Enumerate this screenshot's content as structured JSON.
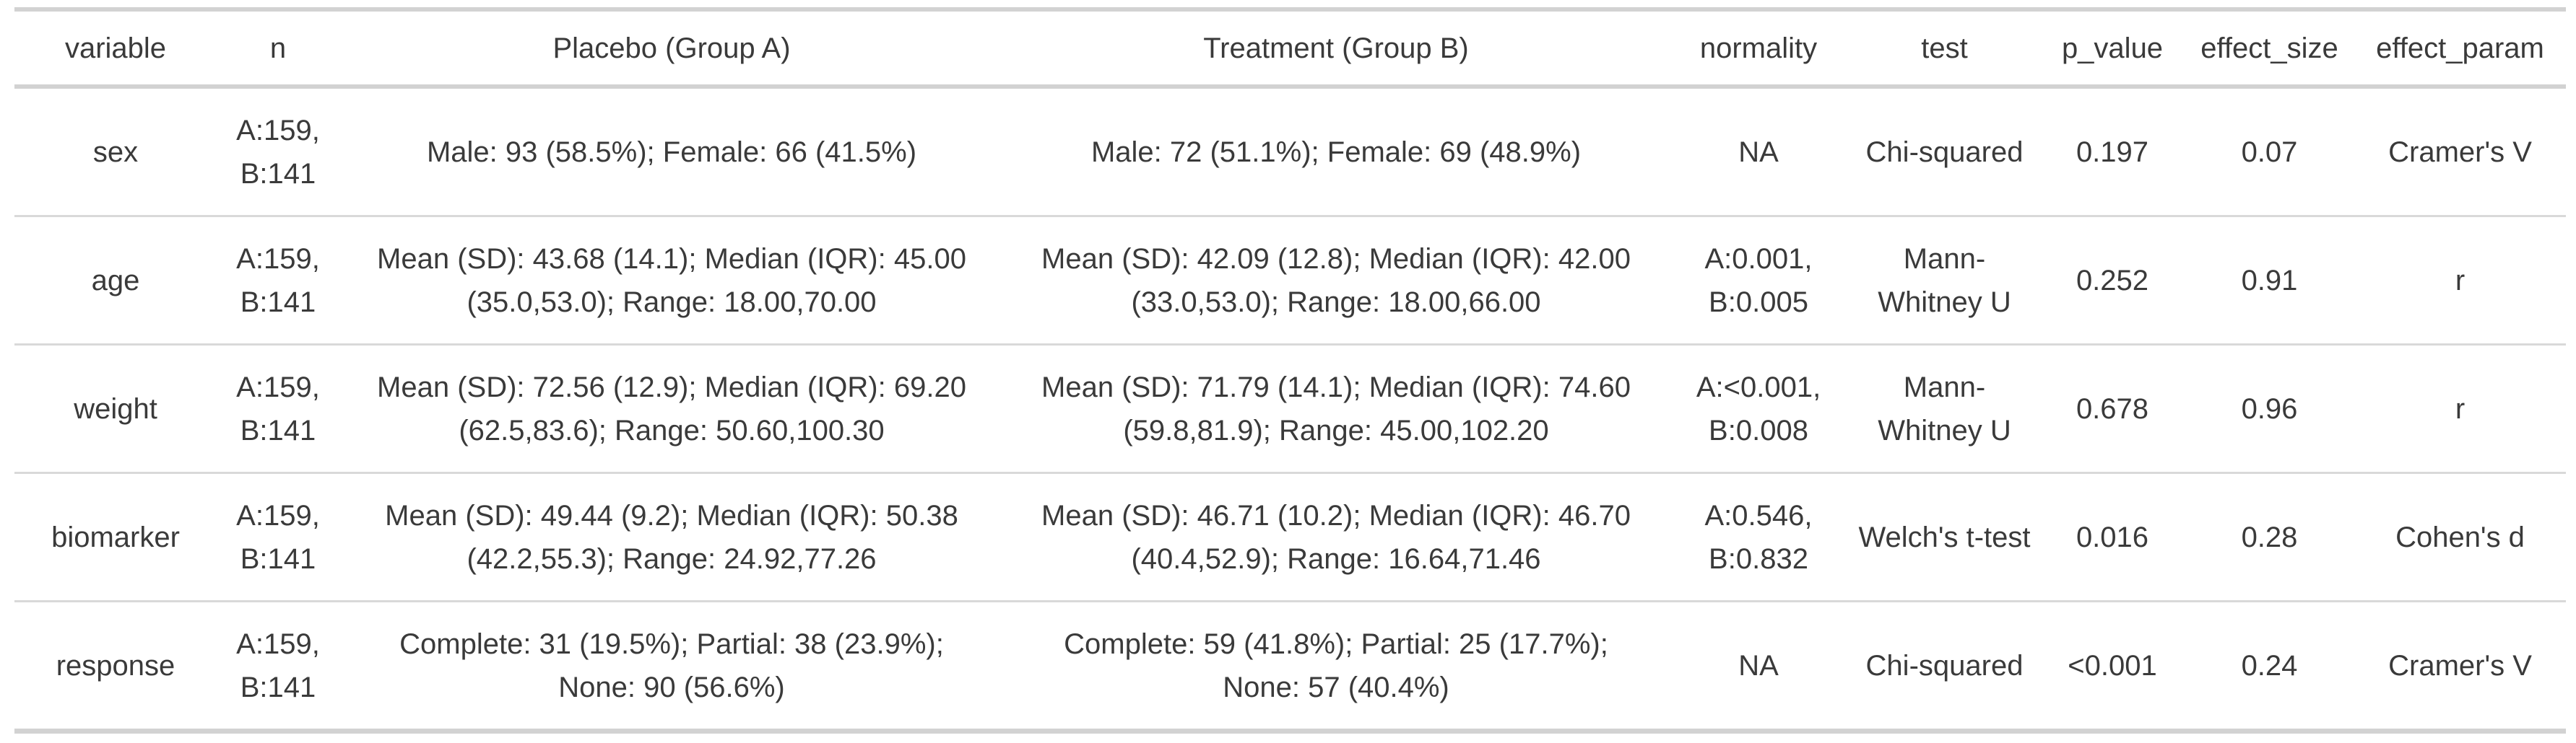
{
  "chart_data": {
    "type": "table",
    "columns": [
      "variable",
      "n",
      "Placebo (Group A)",
      "Treatment (Group B)",
      "normality",
      "test",
      "p_value",
      "effect_size",
      "effect_param"
    ],
    "rows": [
      [
        "sex",
        "A:159, B:141",
        "Male: 93 (58.5%); Female: 66 (41.5%)",
        "Male: 72 (51.1%); Female: 69 (48.9%)",
        "NA",
        "Chi-squared",
        "0.197",
        "0.07",
        "Cramer's V"
      ],
      [
        "age",
        "A:159, B:141",
        "Mean (SD): 43.68 (14.1); Median (IQR): 45.00 (35.0,53.0); Range: 18.00,70.00",
        "Mean (SD): 42.09 (12.8); Median (IQR): 42.00 (33.0,53.0); Range: 18.00,66.00",
        "A:0.001, B:0.005",
        "Mann-Whitney U",
        "0.252",
        "0.91",
        "r"
      ],
      [
        "weight",
        "A:159, B:141",
        "Mean (SD): 72.56 (12.9); Median (IQR): 69.20 (62.5,83.6); Range: 50.60,100.30",
        "Mean (SD): 71.79 (14.1); Median (IQR): 74.60 (59.8,81.9); Range: 45.00,102.20",
        "A:<0.001, B:0.008",
        "Mann-Whitney U",
        "0.678",
        "0.96",
        "r"
      ],
      [
        "biomarker",
        "A:159, B:141",
        "Mean (SD): 49.44 (9.2); Median (IQR): 50.38 (42.2,55.3); Range: 24.92,77.26",
        "Mean (SD): 46.71 (10.2); Median (IQR): 46.70 (40.4,52.9); Range: 16.64,71.46",
        "A:0.546, B:0.832",
        "Welch's t-test",
        "0.016",
        "0.28",
        "Cohen's d"
      ],
      [
        "response",
        "A:159, B:141",
        "Complete: 31 (19.5%); Partial: 38 (23.9%); None: 90 (56.6%)",
        "Complete: 59 (41.8%); Partial: 25 (17.7%); None: 57 (40.4%)",
        "NA",
        "Chi-squared",
        "<0.001",
        "0.24",
        "Cramer's V"
      ]
    ],
    "layout": {
      "grid": "horizontal-rules-only",
      "align": "center"
    }
  },
  "colors": {
    "background": "#ffffff",
    "text": "#3a3a3a",
    "border_strong": "#d2d2d2",
    "border_light": "#d9d9d9"
  }
}
